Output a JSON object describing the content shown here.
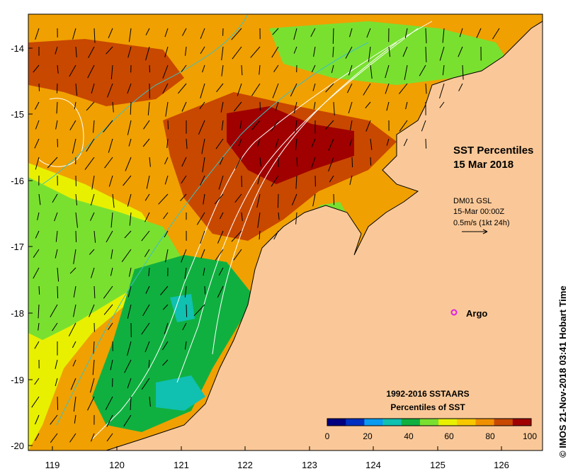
{
  "title": {
    "line1": "SST Percentiles",
    "line2": "15 Mar 2018"
  },
  "current_info": {
    "line1": "DM01 GSL",
    "line2": "15-Mar 00:00Z",
    "line3": "0.5m/s (1kt 24h)"
  },
  "argo_label": "Argo",
  "legend": {
    "title_line1": "1992-2016 SSTAARS",
    "title_line2": "Percentiles of SST",
    "tick_labels": [
      "0",
      "20",
      "40",
      "60",
      "80",
      "100"
    ],
    "colors": [
      "#000080",
      "#0030c0",
      "#0a9af0",
      "#10c0b0",
      "#10b040",
      "#7ae030",
      "#e8f000",
      "#f8c800",
      "#f09000",
      "#c84800",
      "#a00000"
    ]
  },
  "axes": {
    "y_ticks": [
      "-14",
      "-15",
      "-16",
      "-17",
      "-18",
      "-19",
      "-20"
    ],
    "x_ticks": [
      "119",
      "120",
      "121",
      "122",
      "123",
      "124",
      "125",
      "126"
    ]
  },
  "credit": "© IMOS 21-Nov-2018 03:41 Hobart Time",
  "colors": {
    "land": "#fac898",
    "argo_marker": "#e020e0",
    "frame": "#000000"
  }
}
